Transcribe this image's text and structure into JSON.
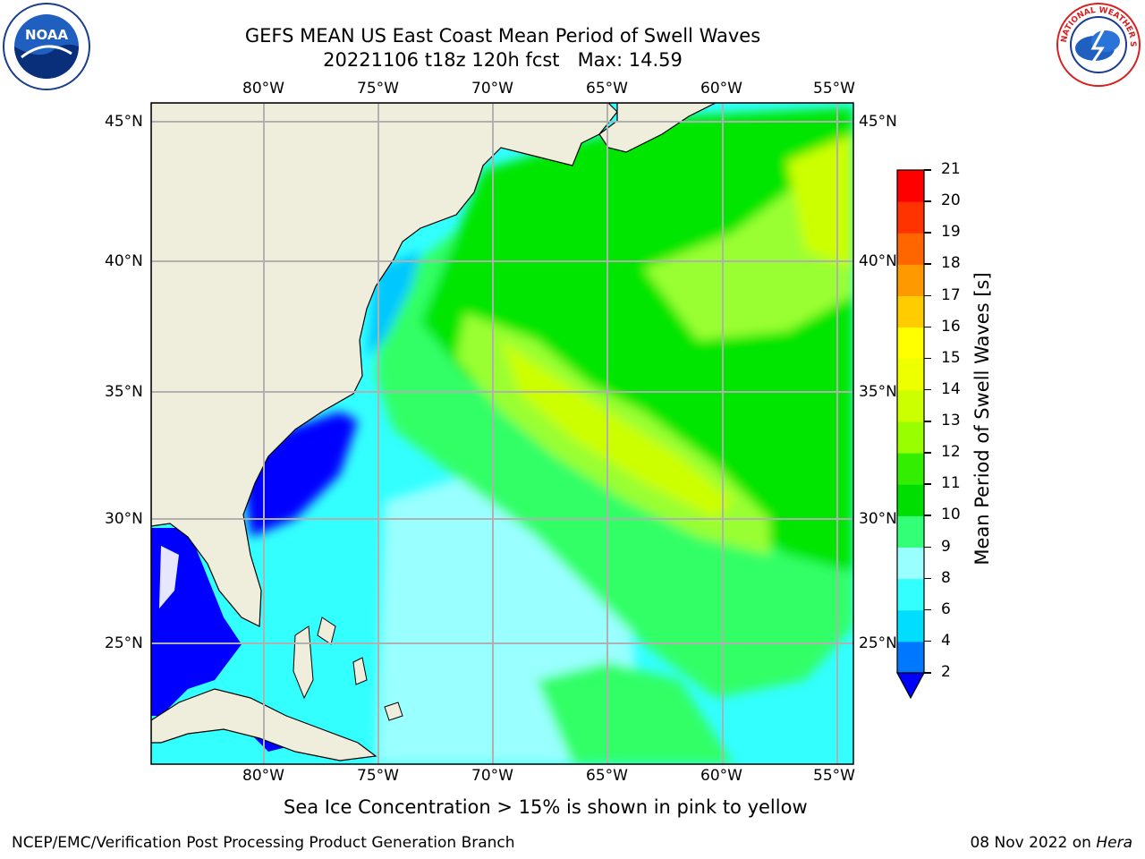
{
  "header": {
    "title_line1": "GEFS MEAN US East Coast Mean Period of Swell Waves",
    "title_line2": "20221106 t18z 120h fcst   Max: 14.59"
  },
  "logos": {
    "noaa_text": "NOAA",
    "nws_text": "NATIONAL WEATHER SERVICE"
  },
  "map": {
    "lon_labels": [
      "80°W",
      "75°W",
      "70°W",
      "65°W",
      "60°W",
      "55°W"
    ],
    "lat_labels": [
      "45°N",
      "40°N",
      "35°N",
      "30°N",
      "25°N"
    ],
    "land_color": "#efeedc",
    "ocean_colors": [
      "#0000ff",
      "#00c8ff",
      "#33ffff",
      "#99ffff",
      "#33ff66",
      "#00e600",
      "#99ff33",
      "#ccff00",
      "#ffff00"
    ]
  },
  "colorbar": {
    "label": "Mean Period of Swell Waves [s]",
    "ticks": [
      "2",
      "4",
      "6",
      "8",
      "9",
      "10",
      "11",
      "12",
      "13",
      "14",
      "15",
      "16",
      "17",
      "18",
      "19",
      "20",
      "21"
    ],
    "colors": [
      "#0077ff",
      "#00ddff",
      "#33ffff",
      "#99ffff",
      "#33ff77",
      "#00dd00",
      "#33ee00",
      "#99ff00",
      "#ccff00",
      "#eeff00",
      "#ffff00",
      "#ffcc00",
      "#ff9900",
      "#ff6600",
      "#ff3300",
      "#ff0000"
    ],
    "under_color": "#0000ff"
  },
  "caption": "Sea Ice Concentration > 15% is shown in pink to yellow",
  "footer": {
    "left": "NCEP/EMC/Verification Post Processing Product Generation Branch",
    "right_date": "08 Nov 2022 on ",
    "right_host": "Hera"
  }
}
